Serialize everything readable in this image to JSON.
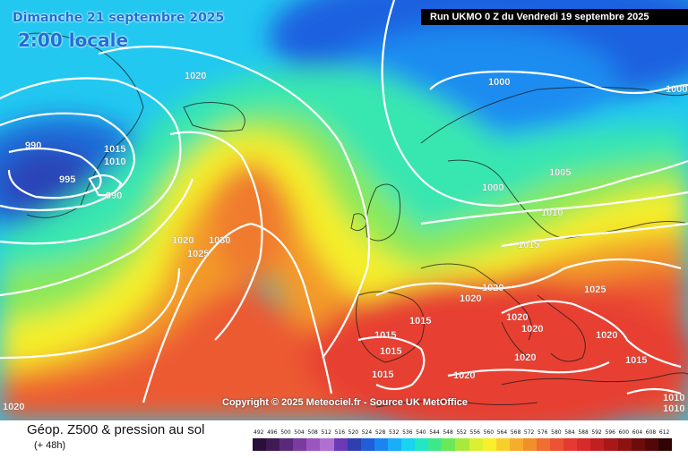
{
  "header": {
    "date": "Dimanche 21 septembre 2025",
    "time": "2:00 locale",
    "run": "Run UKMO 0 Z du Vendredi 19 septembre 2025"
  },
  "copyright": "Copyright © 2025 Meteociel.fr - Source UK MetOffice",
  "footer": {
    "title": "Géop. Z500 & pression au sol",
    "subtitle": "(+ 48h)"
  },
  "scale": {
    "values": [
      "492",
      "496",
      "500",
      "504",
      "508",
      "512",
      "516",
      "520",
      "524",
      "528",
      "532",
      "536",
      "540",
      "544",
      "548",
      "552",
      "556",
      "560",
      "564",
      "568",
      "572",
      "576",
      "580",
      "584",
      "588",
      "592",
      "596",
      "600",
      "604",
      "608",
      "612"
    ],
    "colors": [
      "#2a0f38",
      "#3f1a55",
      "#5a2a7a",
      "#7a3b9e",
      "#9b55bf",
      "#b070d0",
      "#6a3ab8",
      "#2f3fb0",
      "#1f5fd8",
      "#1a85f0",
      "#18aef8",
      "#19d3f0",
      "#22e6c4",
      "#3ee88a",
      "#6be858",
      "#a8ea3a",
      "#daf030",
      "#f7ef2a",
      "#f8cf2a",
      "#f7ad2c",
      "#f38e2d",
      "#ef6e30",
      "#eb5334",
      "#e63a30",
      "#d82a2a",
      "#c22020",
      "#a81818",
      "#8c1212",
      "#6e0c0c",
      "#520808",
      "#300404"
    ]
  },
  "isobars": [
    {
      "value": "1020",
      "id": "a"
    },
    {
      "value": "990",
      "id": "b"
    },
    {
      "value": "1015",
      "id": "c"
    },
    {
      "value": "1010",
      "id": "d"
    },
    {
      "value": "995",
      "id": "e"
    },
    {
      "value": "990",
      "id": "f"
    },
    {
      "value": "1020",
      "id": "g"
    },
    {
      "value": "1030",
      "id": "h"
    },
    {
      "value": "1025",
      "id": "i"
    },
    {
      "value": "1000",
      "id": "j"
    },
    {
      "value": "1000",
      "id": "k"
    },
    {
      "value": "1005",
      "id": "l"
    },
    {
      "value": "1000",
      "id": "m"
    },
    {
      "value": "1010",
      "id": "n"
    },
    {
      "value": "1015",
      "id": "o"
    },
    {
      "value": "1020",
      "id": "p"
    },
    {
      "value": "1020",
      "id": "q"
    },
    {
      "value": "1025",
      "id": "r"
    },
    {
      "value": "1020",
      "id": "s"
    },
    {
      "value": "1020",
      "id": "t"
    },
    {
      "value": "1015",
      "id": "u"
    },
    {
      "value": "1015",
      "id": "v"
    },
    {
      "value": "1015",
      "id": "w"
    },
    {
      "value": "1015",
      "id": "x"
    },
    {
      "value": "1020",
      "id": "y"
    },
    {
      "value": "1020",
      "id": "z"
    },
    {
      "value": "1015",
      "id": "aa"
    },
    {
      "value": "1020",
      "id": "ab"
    },
    {
      "value": "1010",
      "id": "ac"
    },
    {
      "value": "1010",
      "id": "ad"
    },
    {
      "value": "1020",
      "id": "ae"
    }
  ]
}
